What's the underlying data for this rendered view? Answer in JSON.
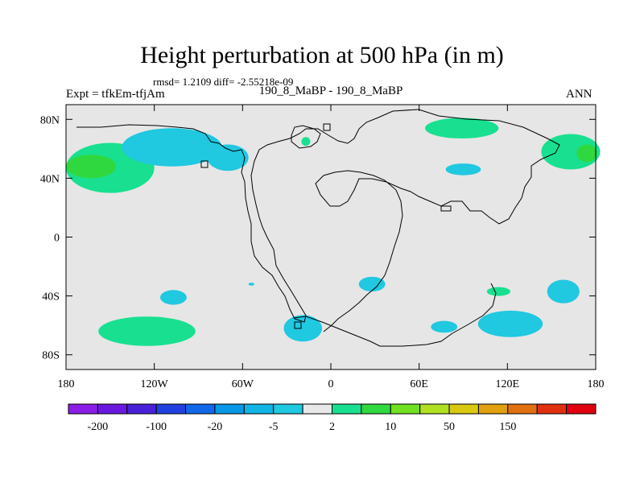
{
  "title": "Height perturbation at 500 hPa (in m)",
  "stats": "rmsd= 1.2109 diff= -2.55218e-09",
  "experiment": "Expt = tfkEm-tfjAm",
  "cases": "190_8_MaBP - 190_8_MaBP",
  "season": "ANN",
  "map": {
    "background_color": "#e6e6e6",
    "lon_range": [
      -180,
      180
    ],
    "lat_range": [
      -90,
      90
    ],
    "x_ticks": [
      {
        "lon": -180,
        "label": "180"
      },
      {
        "lon": -120,
        "label": "120W"
      },
      {
        "lon": -60,
        "label": "60W"
      },
      {
        "lon": 0,
        "label": "0"
      },
      {
        "lon": 60,
        "label": "60E"
      },
      {
        "lon": 120,
        "label": "120E"
      },
      {
        "lon": 180,
        "label": "180"
      }
    ],
    "y_ticks": [
      {
        "lat": 80,
        "label": "80N"
      },
      {
        "lat": 40,
        "label": "40N"
      },
      {
        "lat": 0,
        "label": "0"
      },
      {
        "lat": -40,
        "label": "40S"
      },
      {
        "lat": -80,
        "label": "80S"
      }
    ]
  },
  "colorbar": {
    "colors": [
      "#8a1ee6",
      "#6a18e0",
      "#4820d8",
      "#2040e0",
      "#1068e8",
      "#0898e6",
      "#10b4e4",
      "#20c8e0",
      "#e8e8e8",
      "#18e090",
      "#30d840",
      "#70e020",
      "#b0e020",
      "#d8c810",
      "#e0a010",
      "#e07010",
      "#e03010",
      "#e00010"
    ],
    "labels": [
      {
        "after_box": 1,
        "text": "-200"
      },
      {
        "after_box": 3,
        "text": "-100"
      },
      {
        "after_box": 5,
        "text": "-20"
      },
      {
        "after_box": 7,
        "text": "-5"
      },
      {
        "after_box": 9,
        "text": "2"
      },
      {
        "after_box": 11,
        "text": "10"
      },
      {
        "after_box": 13,
        "text": "50"
      },
      {
        "after_box": 15,
        "text": "150"
      }
    ]
  },
  "anomalies": [
    {
      "class": "positive",
      "color": "#18e090",
      "center": [
        -150,
        47
      ],
      "radii": [
        30,
        17
      ]
    },
    {
      "class": "positive-strong",
      "color": "#30d840",
      "center": [
        -163,
        48
      ],
      "radii": [
        17,
        8
      ]
    },
    {
      "class": "negative",
      "color": "#20c8e0",
      "center": [
        -108,
        61
      ],
      "radii": [
        34,
        13
      ]
    },
    {
      "class": "negative",
      "color": "#20c8e0",
      "center": [
        -70,
        54
      ],
      "radii": [
        14,
        9
      ]
    },
    {
      "class": "positive",
      "color": "#18e090",
      "center": [
        -17,
        65
      ],
      "radii": [
        3,
        3
      ]
    },
    {
      "class": "positive",
      "color": "#18e090",
      "center": [
        89,
        74
      ],
      "radii": [
        25,
        7
      ]
    },
    {
      "class": "positive",
      "color": "#18e090",
      "center": [
        163,
        58
      ],
      "radii": [
        20,
        12
      ]
    },
    {
      "class": "positive-strong",
      "color": "#30d840",
      "center": [
        174,
        57
      ],
      "radii": [
        7,
        6
      ]
    },
    {
      "class": "negative",
      "color": "#20c8e0",
      "center": [
        90,
        46
      ],
      "radii": [
        12,
        4
      ]
    },
    {
      "class": "positive",
      "color": "#18e090",
      "center": [
        -125,
        -64
      ],
      "radii": [
        33,
        10
      ]
    },
    {
      "class": "negative",
      "color": "#20c8e0",
      "center": [
        -107,
        -41
      ],
      "radii": [
        9,
        5
      ]
    },
    {
      "class": "negative",
      "color": "#20c8e0",
      "center": [
        -54,
        -32
      ],
      "radii": [
        2,
        1
      ]
    },
    {
      "class": "negative",
      "color": "#20c8e0",
      "center": [
        28,
        -32
      ],
      "radii": [
        9,
        5
      ]
    },
    {
      "class": "positive",
      "color": "#18e090",
      "center": [
        114,
        -37
      ],
      "radii": [
        8,
        3
      ]
    },
    {
      "class": "negative",
      "color": "#20c8e0",
      "center": [
        158,
        -37
      ],
      "radii": [
        11,
        8
      ]
    },
    {
      "class": "negative",
      "color": "#20c8e0",
      "center": [
        -19,
        -62
      ],
      "radii": [
        13,
        9
      ]
    },
    {
      "class": "negative",
      "color": "#20c8e0",
      "center": [
        77,
        -61
      ],
      "radii": [
        9,
        4
      ]
    },
    {
      "class": "negative",
      "color": "#20c8e0",
      "center": [
        122,
        -59
      ],
      "radii": [
        22,
        9
      ]
    }
  ]
}
